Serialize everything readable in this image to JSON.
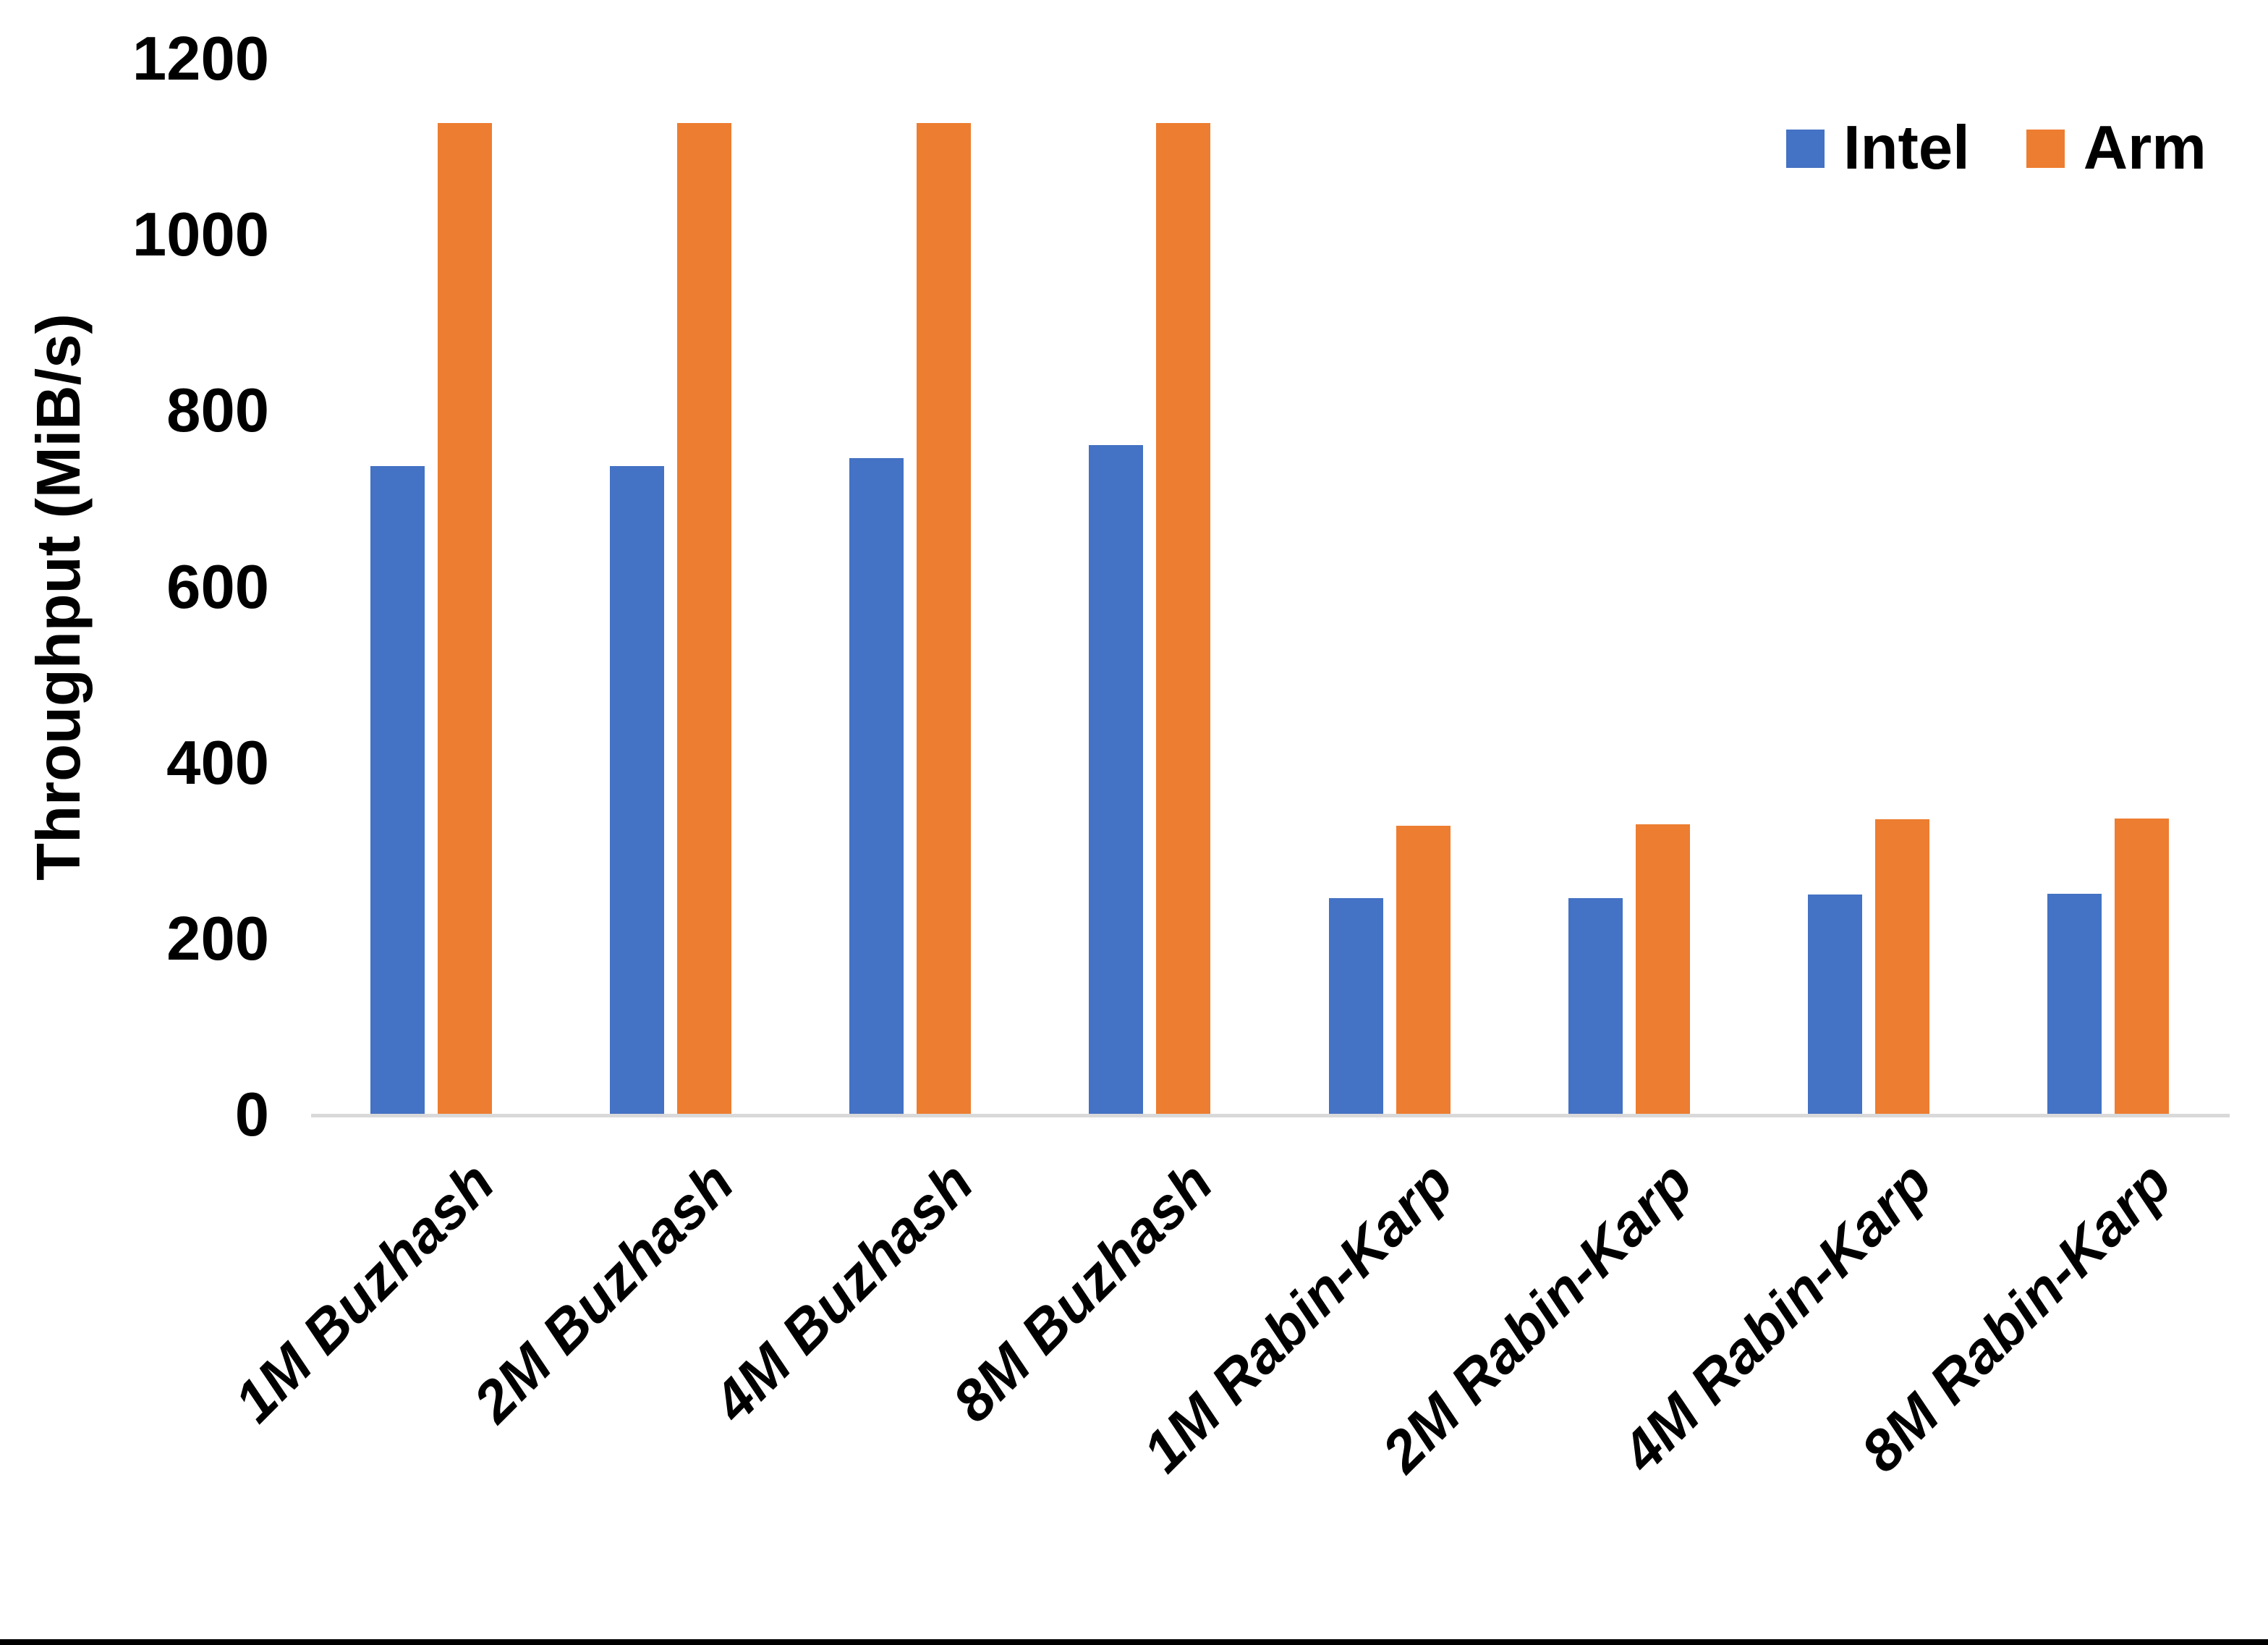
{
  "chart_data": {
    "type": "bar",
    "title": "",
    "xlabel": "",
    "ylabel": "Throughput (MiB/s)",
    "ylim": [
      0,
      1200
    ],
    "yticks": [
      0,
      200,
      400,
      600,
      800,
      1000,
      1200
    ],
    "grid": false,
    "legend_position": "top-right",
    "axis_line_color": "#d9d9d9",
    "text_color": "#000000",
    "categories": [
      "1M Buzhash",
      "2M Buzhash",
      "4M Buzhash",
      "8M Buzhash",
      "1M Rabin-Karp",
      "2M Rabin-Karp",
      "4M Rabin-Karp",
      "8M Rabin-Karp"
    ],
    "series": [
      {
        "name": "Intel",
        "color": "#4472C4",
        "values": [
          738,
          738,
          747,
          762,
          247,
          247,
          251,
          252
        ]
      },
      {
        "name": "Arm",
        "color": "#ED7D31",
        "values": [
          1128,
          1128,
          1128,
          1128,
          329,
          331,
          336,
          337
        ]
      }
    ]
  }
}
